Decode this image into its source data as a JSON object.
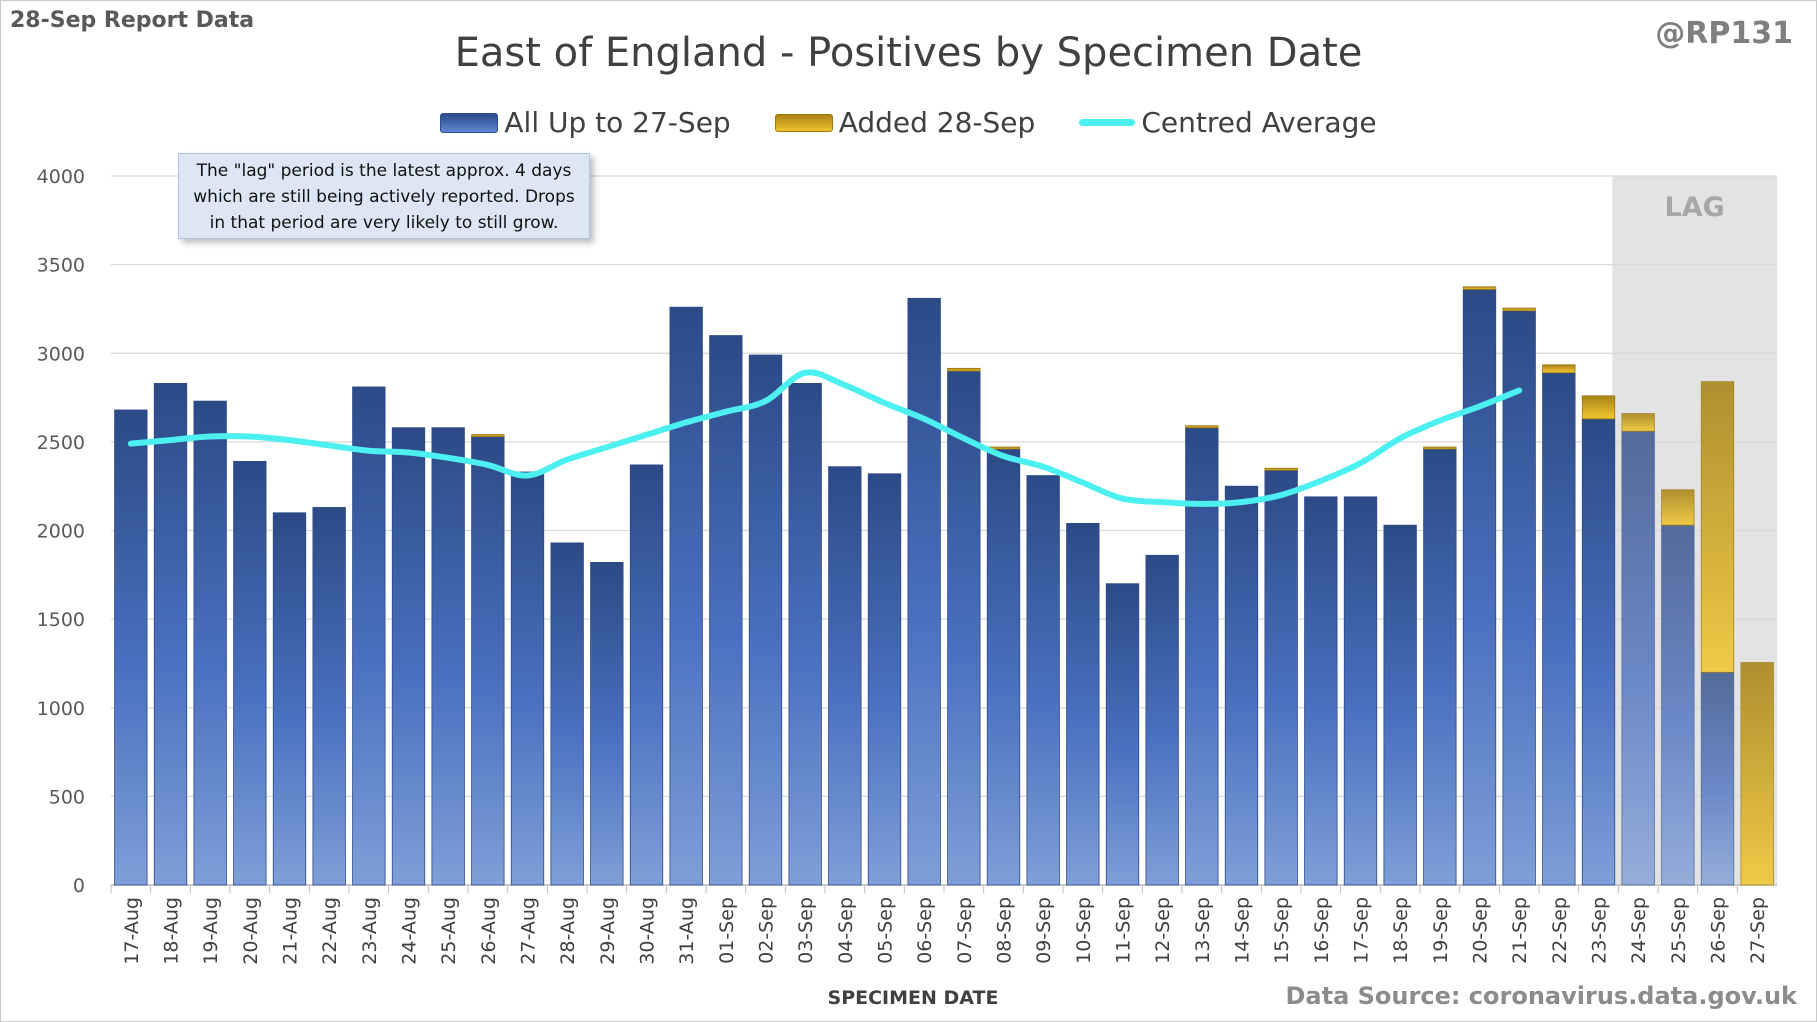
{
  "header": {
    "report_label": "28-Sep Report Data",
    "handle": "@RP131"
  },
  "note": {
    "lines": [
      "The \"lag\" period is the latest approx. 4 days",
      "which are still being actively reported.  Drops",
      "in that period are very likely to still grow."
    ]
  },
  "footer": {
    "source": "Data Source: coronavirus.data.gov.uk"
  },
  "colors": {
    "base_top": "#2c4a86",
    "base_bottom": "#7f9fd8",
    "added_top": "#a88418",
    "added_bottom": "#f2c630",
    "average_line": "#4cf0f0",
    "lag_shade": "#e3e3e3",
    "grid": "#d9d9d9"
  },
  "chart_data": {
    "type": "bar",
    "title": "East of England - Positives by Specimen Date",
    "xlabel": "SPECIMEN DATE",
    "ylabel": "",
    "ylim": [
      0,
      4000
    ],
    "yticks": [
      0,
      500,
      1000,
      1500,
      2000,
      2500,
      3000,
      3500,
      4000
    ],
    "grid": true,
    "legend_position": "top-center",
    "stacked": true,
    "categories": [
      "17-Aug",
      "18-Aug",
      "19-Aug",
      "20-Aug",
      "21-Aug",
      "22-Aug",
      "23-Aug",
      "24-Aug",
      "25-Aug",
      "26-Aug",
      "27-Aug",
      "28-Aug",
      "29-Aug",
      "30-Aug",
      "31-Aug",
      "01-Sep",
      "02-Sep",
      "03-Sep",
      "04-Sep",
      "05-Sep",
      "06-Sep",
      "07-Sep",
      "08-Sep",
      "09-Sep",
      "10-Sep",
      "11-Sep",
      "12-Sep",
      "13-Sep",
      "14-Sep",
      "15-Sep",
      "16-Sep",
      "17-Sep",
      "18-Sep",
      "19-Sep",
      "20-Sep",
      "21-Sep",
      "22-Sep",
      "23-Sep",
      "24-Sep",
      "25-Sep",
      "26-Sep",
      "27-Sep"
    ],
    "series": [
      {
        "name": "All Up to 27-Sep",
        "values": [
          2680,
          2830,
          2730,
          2390,
          2100,
          2130,
          2810,
          2580,
          2580,
          2530,
          2330,
          1930,
          1820,
          2370,
          3260,
          3100,
          2990,
          2830,
          2360,
          2320,
          3310,
          2900,
          2460,
          2310,
          2040,
          1700,
          1860,
          2580,
          2250,
          2340,
          2190,
          2190,
          2030,
          2460,
          3360,
          3240,
          2890,
          2630,
          2560,
          2030,
          1200,
          0
        ]
      },
      {
        "name": "Added 28-Sep",
        "values": [
          0,
          0,
          0,
          0,
          0,
          0,
          0,
          0,
          0,
          10,
          0,
          0,
          0,
          0,
          0,
          0,
          0,
          0,
          0,
          0,
          0,
          15,
          5,
          0,
          0,
          0,
          0,
          10,
          0,
          10,
          0,
          0,
          0,
          5,
          15,
          15,
          45,
          130,
          100,
          200,
          1640,
          1255
        ]
      },
      {
        "name": "Centred Average",
        "type": "line",
        "values": [
          2490,
          2510,
          2530,
          2530,
          2510,
          2480,
          2450,
          2440,
          2410,
          2370,
          2310,
          2400,
          2470,
          2540,
          2610,
          2670,
          2730,
          2890,
          2820,
          2720,
          2630,
          2520,
          2420,
          2360,
          2270,
          2180,
          2160,
          2150,
          2160,
          2200,
          2280,
          2380,
          2520,
          2620,
          2700,
          2790,
          null,
          null,
          null,
          null,
          null,
          null
        ]
      }
    ],
    "lag_period": {
      "label": "LAG",
      "start": "24-Sep",
      "end": "27-Sep"
    }
  }
}
